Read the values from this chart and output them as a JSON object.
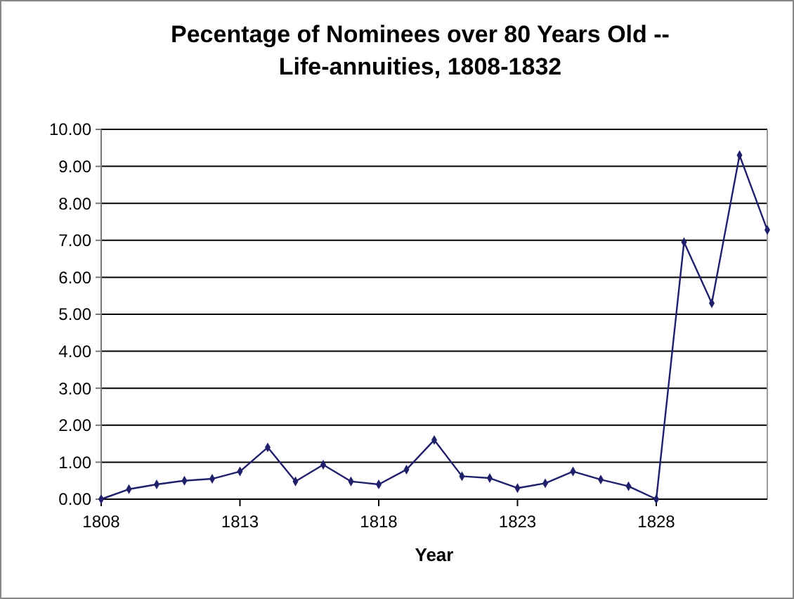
{
  "chart_data": {
    "type": "line",
    "title": "Pecentage of Nominees over 80 Years Old -- Life-annuities, 1808-1832",
    "xlabel": "Year",
    "x": [
      1808,
      1809,
      1810,
      1811,
      1812,
      1813,
      1814,
      1815,
      1816,
      1817,
      1818,
      1819,
      1820,
      1821,
      1822,
      1823,
      1824,
      1825,
      1826,
      1827,
      1828,
      1829,
      1830,
      1831,
      1832
    ],
    "series": [
      {
        "color": "#1f1f6b",
        "values": [
          0,
          0.27,
          0.4,
          0.5,
          0.55,
          0.75,
          1.4,
          0.48,
          0.93,
          0.48,
          0.4,
          0.8,
          1.6,
          0.62,
          0.57,
          0.3,
          0.43,
          0.75,
          0.53,
          0.35,
          0,
          6.95,
          5.3,
          9.3,
          7.28
        ]
      }
    ],
    "xlim": [
      1808,
      1832
    ],
    "xticks": [
      1808,
      1813,
      1818,
      1823,
      1828
    ],
    "ylim": [
      0,
      10
    ],
    "yticks": [
      {
        "value": 0,
        "label": "0.00"
      },
      {
        "value": 1,
        "label": "1.00"
      },
      {
        "value": 2,
        "label": "2.00"
      },
      {
        "value": 3,
        "label": "3.00"
      },
      {
        "value": 4,
        "label": "4.00"
      },
      {
        "value": 5,
        "label": "5.00"
      },
      {
        "value": 6,
        "label": "6.00"
      },
      {
        "value": 7,
        "label": "7.00"
      },
      {
        "value": 8,
        "label": "8.00"
      },
      {
        "value": 9,
        "label": "9.00"
      },
      {
        "value": 10,
        "label": "10.00"
      }
    ],
    "grid": "y",
    "marker": "diamond",
    "line_style": "solid"
  }
}
